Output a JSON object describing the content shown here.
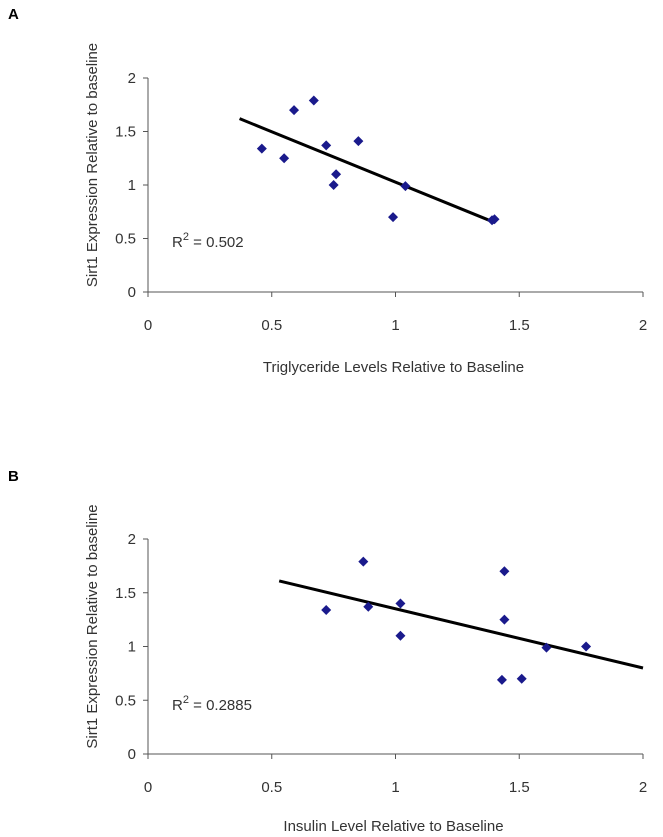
{
  "chart_data": [
    {
      "panel": "A",
      "type": "scatter",
      "xlabel": "Triglyceride Levels Relative to Baseline",
      "ylabel": "Sirt1 Expression Relative to baseline",
      "xlim": [
        0,
        2
      ],
      "ylim": [
        0,
        2
      ],
      "xticks": [
        "0",
        "0.5",
        "1",
        "1.5",
        "2"
      ],
      "yticks": [
        "0",
        "0.5",
        "1",
        "1.5",
        "2"
      ],
      "x": [
        0.46,
        0.55,
        0.59,
        0.67,
        0.72,
        0.75,
        0.76,
        0.85,
        0.99,
        1.04,
        1.39,
        1.4
      ],
      "y": [
        1.34,
        1.25,
        1.7,
        1.79,
        1.37,
        1.0,
        1.1,
        1.41,
        0.7,
        0.99,
        0.67,
        0.68
      ],
      "trendline": {
        "x": [
          0.37,
          1.4
        ],
        "y": [
          1.62,
          0.65
        ]
      },
      "annotation": {
        "text": "R",
        "sup": "2",
        "value": " = 0.502"
      },
      "marker_color": "#1a1a8c",
      "grid": false
    },
    {
      "panel": "B",
      "type": "scatter",
      "xlabel": "Insulin Level Relative to Baseline",
      "ylabel": "Sirt1 Expression Relative to baseline",
      "xlim": [
        0,
        2
      ],
      "ylim": [
        0,
        2
      ],
      "xticks": [
        "0",
        "0.5",
        "1",
        "1.5",
        "2"
      ],
      "yticks": [
        "0",
        "0.5",
        "1",
        "1.5",
        "2"
      ],
      "x": [
        0.72,
        0.87,
        0.89,
        1.02,
        1.02,
        1.43,
        1.44,
        1.44,
        1.51,
        1.61,
        1.77
      ],
      "y": [
        1.34,
        1.79,
        1.37,
        1.4,
        1.1,
        0.69,
        1.25,
        1.7,
        0.7,
        0.99,
        1.0
      ],
      "trendline": {
        "x": [
          0.53,
          2.0
        ],
        "y": [
          1.61,
          0.8
        ]
      },
      "annotation": {
        "text": "R",
        "sup": "2",
        "value": " = 0.2885"
      },
      "marker_color": "#1a1a8c",
      "grid": false
    }
  ]
}
